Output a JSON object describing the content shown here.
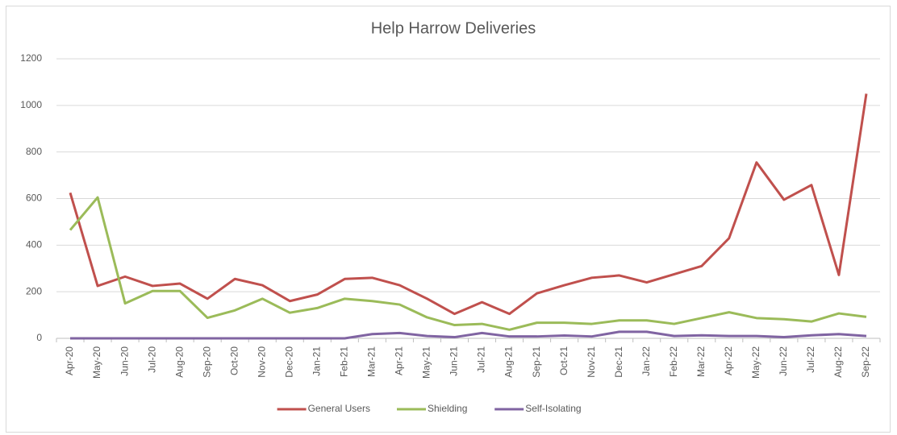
{
  "chart_data": {
    "type": "line",
    "title": "Help Harrow Deliveries",
    "categories": [
      "Apr-20",
      "May-20",
      "Jun-20",
      "Jul-20",
      "Aug-20",
      "Sep-20",
      "Oct-20",
      "Nov-20",
      "Dec-20",
      "Jan-21",
      "Feb-21",
      "Mar-21",
      "Apr-21",
      "May-21",
      "Jun-21",
      "Jul-21",
      "Aug-21",
      "Sep-21",
      "Oct-21",
      "Nov-21",
      "Dec-21",
      "Jan-22",
      "Feb-22",
      "Mar-22",
      "Apr-22",
      "May-22",
      "Jun-22",
      "Jul-22",
      "Aug-22",
      "Sep-22"
    ],
    "series": [
      {
        "name": "General Users",
        "color": "#c0504d",
        "values": [
          625,
          225,
          265,
          225,
          235,
          170,
          255,
          228,
          160,
          188,
          255,
          260,
          228,
          170,
          105,
          155,
          105,
          193,
          228,
          260,
          270,
          240,
          275,
          310,
          430,
          755,
          595,
          658,
          272,
          1050
        ]
      },
      {
        "name": "Shielding",
        "color": "#9bbb59",
        "values": [
          465,
          605,
          150,
          203,
          203,
          88,
          120,
          170,
          110,
          130,
          170,
          160,
          145,
          90,
          57,
          62,
          37,
          67,
          67,
          62,
          77,
          77,
          62,
          87,
          112,
          87,
          82,
          72,
          107,
          92
        ]
      },
      {
        "name": "Self-Isolating",
        "color": "#8064a2",
        "values": [
          0,
          0,
          0,
          0,
          0,
          0,
          0,
          0,
          0,
          0,
          0,
          18,
          23,
          10,
          5,
          23,
          8,
          8,
          12,
          8,
          28,
          28,
          10,
          13,
          10,
          10,
          5,
          13,
          18,
          10
        ]
      }
    ],
    "ylim": [
      0,
      1200
    ],
    "yticks": [
      0,
      200,
      400,
      600,
      800,
      1000,
      1200
    ],
    "grid": true,
    "legend": "bottom"
  }
}
